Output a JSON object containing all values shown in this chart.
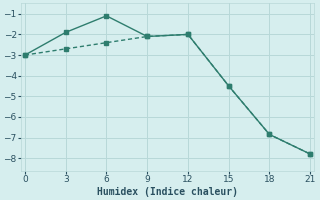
{
  "line1_x": [
    0,
    3,
    6,
    9,
    12,
    15,
    18,
    21
  ],
  "line1_y": [
    -3.0,
    -1.9,
    -1.1,
    -2.1,
    -2.0,
    -4.5,
    -6.85,
    -7.8
  ],
  "line2_x": [
    0,
    3,
    6,
    9,
    12,
    15,
    18,
    21
  ],
  "line2_y": [
    -3.0,
    -2.7,
    -2.4,
    -2.1,
    -2.0,
    -4.5,
    -6.85,
    -7.8
  ],
  "color": "#2e7d6e",
  "bg_color": "#d6eeee",
  "grid_color": "#b8d8d8",
  "xlabel": "Humidex (Indice chaleur)",
  "xlim": [
    -0.3,
    21.3
  ],
  "ylim": [
    -8.6,
    -0.5
  ],
  "xticks": [
    0,
    3,
    6,
    9,
    12,
    15,
    18,
    21
  ],
  "yticks": [
    -8,
    -7,
    -6,
    -5,
    -4,
    -3,
    -2,
    -1
  ],
  "tick_fontsize": 6.5,
  "xlabel_fontsize": 7,
  "font_color": "#2a5060",
  "linewidth": 1.0,
  "markersize": 3.0
}
